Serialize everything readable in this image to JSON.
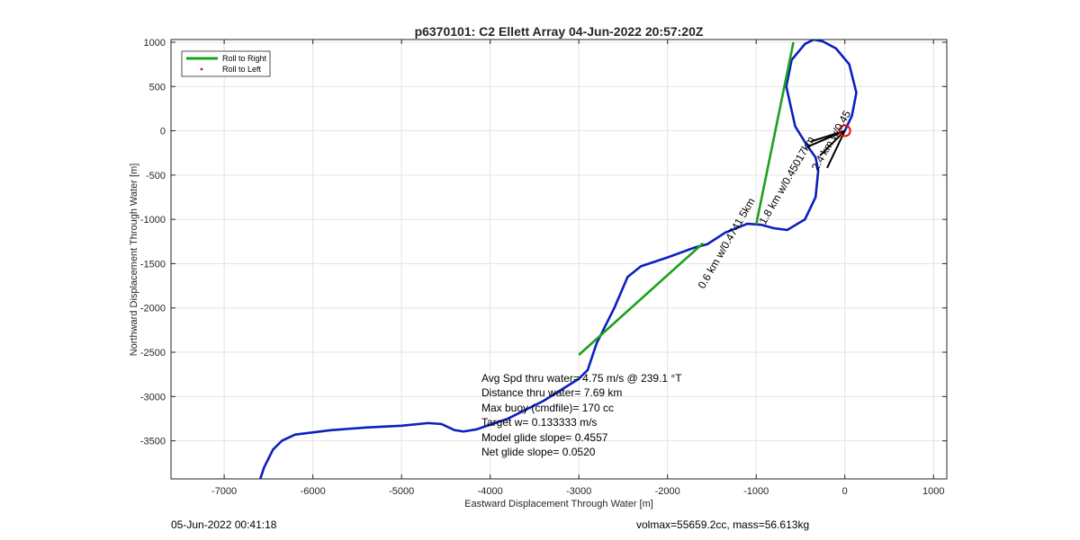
{
  "chart_data": {
    "type": "line",
    "title": "p6370101: C2 Ellett Array 04-Jun-2022 20:57:20Z",
    "xlabel": "Eastward Displacement Through Water [m]",
    "ylabel": "Northward Displacement Through Water [m]",
    "xlim": [
      -7600,
      1150
    ],
    "ylim": [
      -3930,
      1030
    ],
    "xticks": [
      -7000,
      -6000,
      -5000,
      -4000,
      -3000,
      -2000,
      -1000,
      0,
      1000
    ],
    "yticks": [
      -3500,
      -3000,
      -2500,
      -2000,
      -1500,
      -1000,
      -500,
      0,
      500,
      1000
    ],
    "xtick_labels": [
      "-7000",
      "-6000",
      "-5000",
      "-4000",
      "-3000",
      "-2000",
      "-1000",
      "0",
      "1000"
    ],
    "ytick_labels": [
      "-3500",
      "-3000",
      "-2500",
      "-2000",
      "-1500",
      "-1000",
      "-500",
      "0",
      "500",
      "1000"
    ],
    "grid": true,
    "legend": {
      "placement": "top-left",
      "entries": [
        {
          "label": "Roll to Right",
          "color": "#1aa11a",
          "style": "line"
        },
        {
          "label": "Roll to Left",
          "color": "#e01010",
          "style": "dot"
        }
      ]
    },
    "series": [
      {
        "color": "#0b1fbf",
        "points": [
          [
            -6600,
            -3950
          ],
          [
            -6550,
            -3800
          ],
          [
            -6450,
            -3600
          ],
          [
            -6350,
            -3500
          ],
          [
            -6200,
            -3430
          ],
          [
            -5800,
            -3380
          ],
          [
            -5400,
            -3350
          ],
          [
            -5000,
            -3330
          ],
          [
            -4700,
            -3300
          ],
          [
            -4550,
            -3310
          ],
          [
            -4400,
            -3380
          ],
          [
            -4300,
            -3395
          ],
          [
            -4150,
            -3370
          ],
          [
            -3800,
            -3250
          ],
          [
            -3400,
            -3050
          ],
          [
            -3000,
            -2800
          ],
          [
            -2900,
            -2700
          ],
          [
            -2800,
            -2400
          ],
          [
            -2600,
            -2000
          ],
          [
            -2450,
            -1650
          ],
          [
            -2300,
            -1530
          ],
          [
            -2000,
            -1430
          ],
          [
            -1700,
            -1320
          ],
          [
            -1550,
            -1280
          ],
          [
            -1350,
            -1150
          ],
          [
            -1100,
            -1050
          ],
          [
            -950,
            -1060
          ],
          [
            -800,
            -1100
          ],
          [
            -650,
            -1120
          ],
          [
            -450,
            -1000
          ],
          [
            -330,
            -750
          ],
          [
            -300,
            -450
          ],
          [
            -330,
            -300
          ],
          [
            -430,
            -160
          ],
          [
            -560,
            50
          ],
          [
            -660,
            500
          ],
          [
            -600,
            800
          ],
          [
            -450,
            980
          ],
          [
            -350,
            1030
          ],
          [
            -250,
            1010
          ],
          [
            -100,
            930
          ],
          [
            50,
            750
          ],
          [
            130,
            430
          ],
          [
            80,
            170
          ],
          [
            0,
            0
          ]
        ]
      },
      {
        "color": "#1aa11a",
        "segments": [
          [
            [
              -3000,
              -2530
            ],
            [
              -1600,
              -1270
            ]
          ],
          [
            [
              -1000,
              -1060
            ],
            [
              -580,
              1000
            ]
          ]
        ]
      },
      {
        "color": "#000000",
        "segments": [
          [
            [
              -420,
              -180
            ],
            [
              0,
              0
            ]
          ],
          [
            [
              -200,
              -420
            ],
            [
              0,
              0
            ]
          ],
          [
            [
              -380,
              -120
            ],
            [
              0,
              0
            ]
          ],
          [
            [
              -280,
              -280
            ],
            [
              0,
              0
            ]
          ]
        ]
      }
    ],
    "start_marker": {
      "x": 0,
      "y": 0,
      "color": "#e01010"
    },
    "rotated_labels": [
      {
        "text": "0.6 km w/0.4741 5km",
        "x": -1300,
        "y": -1290,
        "rotation": -60
      },
      {
        "text": "1.8 km w/0.45017km",
        "x": -620,
        "y": -580,
        "rotation": -60
      },
      {
        "text": "2.4 km w/0.45",
        "x": -120,
        "y": -130,
        "rotation": -60
      }
    ],
    "annotations": [
      "Avg Spd thru water=  4.75 m/s @ 239.1 °T",
      "Distance thru water=  7.69 km",
      "Max buoy (cmdfile)= 170 cc",
      "Target w= 0.133333 m/s",
      "Model glide slope= 0.4557",
      "Net glide slope= 0.0520"
    ]
  },
  "footer": {
    "timestamp": "05-Jun-2022 00:41:18",
    "volume_mass": "volmax=55659.2cc, mass=56.613kg"
  }
}
